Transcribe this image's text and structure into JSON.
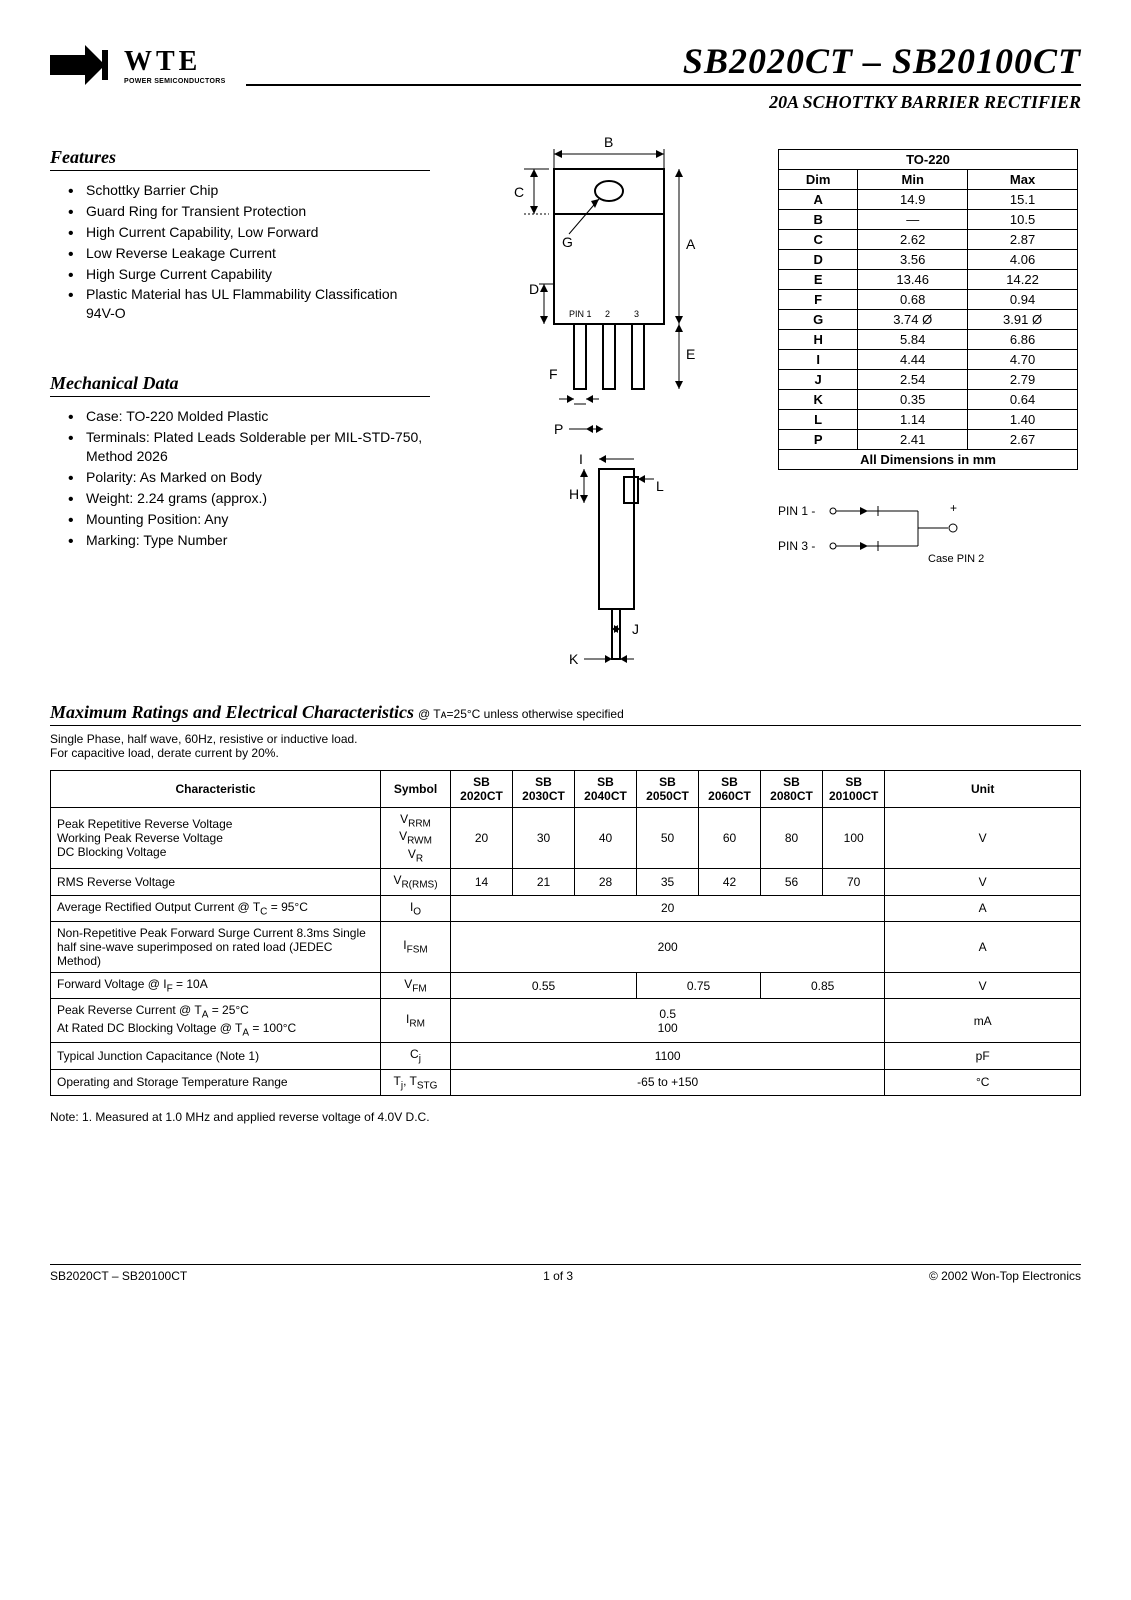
{
  "logo": {
    "wte": "WTE",
    "sub": "POWER SEMICONDUCTORS"
  },
  "title": "SB2020CT – SB20100CT",
  "subtitle": "20A SCHOTTKY BARRIER RECTIFIER",
  "features": {
    "heading": "Features",
    "items": [
      "Schottky Barrier Chip",
      "Guard Ring for Transient Protection",
      "High Current Capability, Low Forward",
      "Low Reverse Leakage Current",
      "High Surge Current Capability",
      "Plastic Material has UL Flammability Classification 94V-O"
    ]
  },
  "mechanical": {
    "heading": "Mechanical Data",
    "items": [
      "Case: TO-220 Molded Plastic",
      "Terminals: Plated Leads Solderable per MIL-STD-750, Method 2026",
      "Polarity: As Marked on Body",
      "Weight: 2.24 grams (approx.)",
      "Mounting Position: Any",
      "Marking: Type Number"
    ]
  },
  "package_drawing": {
    "labels": {
      "A": "A",
      "B": "B",
      "C": "C",
      "D": "D",
      "E": "E",
      "F": "F",
      "G": "G",
      "H": "H",
      "I": "I",
      "J": "J",
      "K": "K",
      "L": "L",
      "P": "P"
    },
    "pins": {
      "p1": "PIN 1",
      "p2": "2",
      "p3": "3"
    }
  },
  "dim_table": {
    "caption": "TO-220",
    "headers": [
      "Dim",
      "Min",
      "Max"
    ],
    "rows": [
      [
        "A",
        "14.9",
        "15.1"
      ],
      [
        "B",
        "—",
        "10.5"
      ],
      [
        "C",
        "2.62",
        "2.87"
      ],
      [
        "D",
        "3.56",
        "4.06"
      ],
      [
        "E",
        "13.46",
        "14.22"
      ],
      [
        "F",
        "0.68",
        "0.94"
      ],
      [
        "G",
        "3.74 Ø",
        "3.91 Ø"
      ],
      [
        "H",
        "5.84",
        "6.86"
      ],
      [
        "I",
        "4.44",
        "4.70"
      ],
      [
        "J",
        "2.54",
        "2.79"
      ],
      [
        "K",
        "0.35",
        "0.64"
      ],
      [
        "L",
        "1.14",
        "1.40"
      ],
      [
        "P",
        "2.41",
        "2.67"
      ]
    ],
    "footer": "All Dimensions in mm"
  },
  "pin_schematic": {
    "pin1": "PIN 1 -",
    "pin3": "PIN 3 -",
    "plus": "+",
    "case": "Case PIN 2"
  },
  "ratings": {
    "heading": "Maximum Ratings and Electrical Characteristics",
    "condition": " @ Tᴀ=25°C unless otherwise specified",
    "intro1": "Single Phase, half wave, 60Hz, resistive or inductive load.",
    "intro2": "For capacitive load, derate current by 20%.",
    "headers": [
      "Characteristic",
      "Symbol",
      "SB 2020CT",
      "SB 2030CT",
      "SB 2040CT",
      "SB 2050CT",
      "SB 2060CT",
      "SB 2080CT",
      "SB 20100CT",
      "Unit"
    ],
    "rows": [
      {
        "char": "Peak Repetitive Reverse Voltage\nWorking Peak Reverse Voltage\nDC Blocking Voltage",
        "sym": "Vᴳᴳᴹ\nVᴳᵂᴹ\nVᴳ",
        "sym_html": "V<sub>RRM</sub><br>V<sub>RWM</sub><br>V<sub>R</sub>",
        "vals": [
          "20",
          "30",
          "40",
          "50",
          "60",
          "80",
          "100"
        ],
        "unit": "V"
      },
      {
        "char": "RMS Reverse Voltage",
        "sym_html": "V<sub>R(RMS)</sub>",
        "vals": [
          "14",
          "21",
          "28",
          "35",
          "42",
          "56",
          "70"
        ],
        "unit": "V"
      },
      {
        "char": "Average Rectified Output Current     @ T<sub>C</sub> = 95°C",
        "sym_html": "I<sub>O</sub>",
        "span": "20",
        "unit": "A"
      },
      {
        "char": "Non-Repetitive Peak Forward Surge Current 8.3ms Single half sine-wave superimposed on rated load (JEDEC Method)",
        "sym_html": "I<sub>FSM</sub>",
        "span": "200",
        "unit": "A"
      },
      {
        "char": "Forward Voltage                              @ I<sub>F</sub> = 10A",
        "sym_html": "V<sub>FM</sub>",
        "groups": [
          [
            "0.55",
            3
          ],
          [
            "0.75",
            2
          ],
          [
            "0.85",
            2
          ]
        ],
        "unit": "V"
      },
      {
        "char": "Peak Reverse Current                    @ T<sub>A</sub> = 25°C\nAt Rated DC Blocking Voltage        @ T<sub>A</sub> = 100°C",
        "sym_html": "I<sub>RM</sub>",
        "span": "0.5<br>100",
        "unit": "mA"
      },
      {
        "char": "Typical Junction Capacitance (Note 1)",
        "sym_html": "C<sub>j</sub>",
        "span": "1100",
        "unit": "pF"
      },
      {
        "char": "Operating and Storage Temperature Range",
        "sym_html": "T<sub>j</sub>, T<sub>STG</sub>",
        "span": "-65 to +150",
        "unit": "°C"
      }
    ]
  },
  "note": "Note:  1. Measured at 1.0 MHz and applied reverse voltage of 4.0V D.C.",
  "footer": {
    "left": "SB2020CT – SB20100CT",
    "center": "1 of 3",
    "right": "© 2002 Won-Top Electronics"
  },
  "colors": {
    "text": "#000000",
    "bg": "#ffffff",
    "rule": "#000000"
  }
}
